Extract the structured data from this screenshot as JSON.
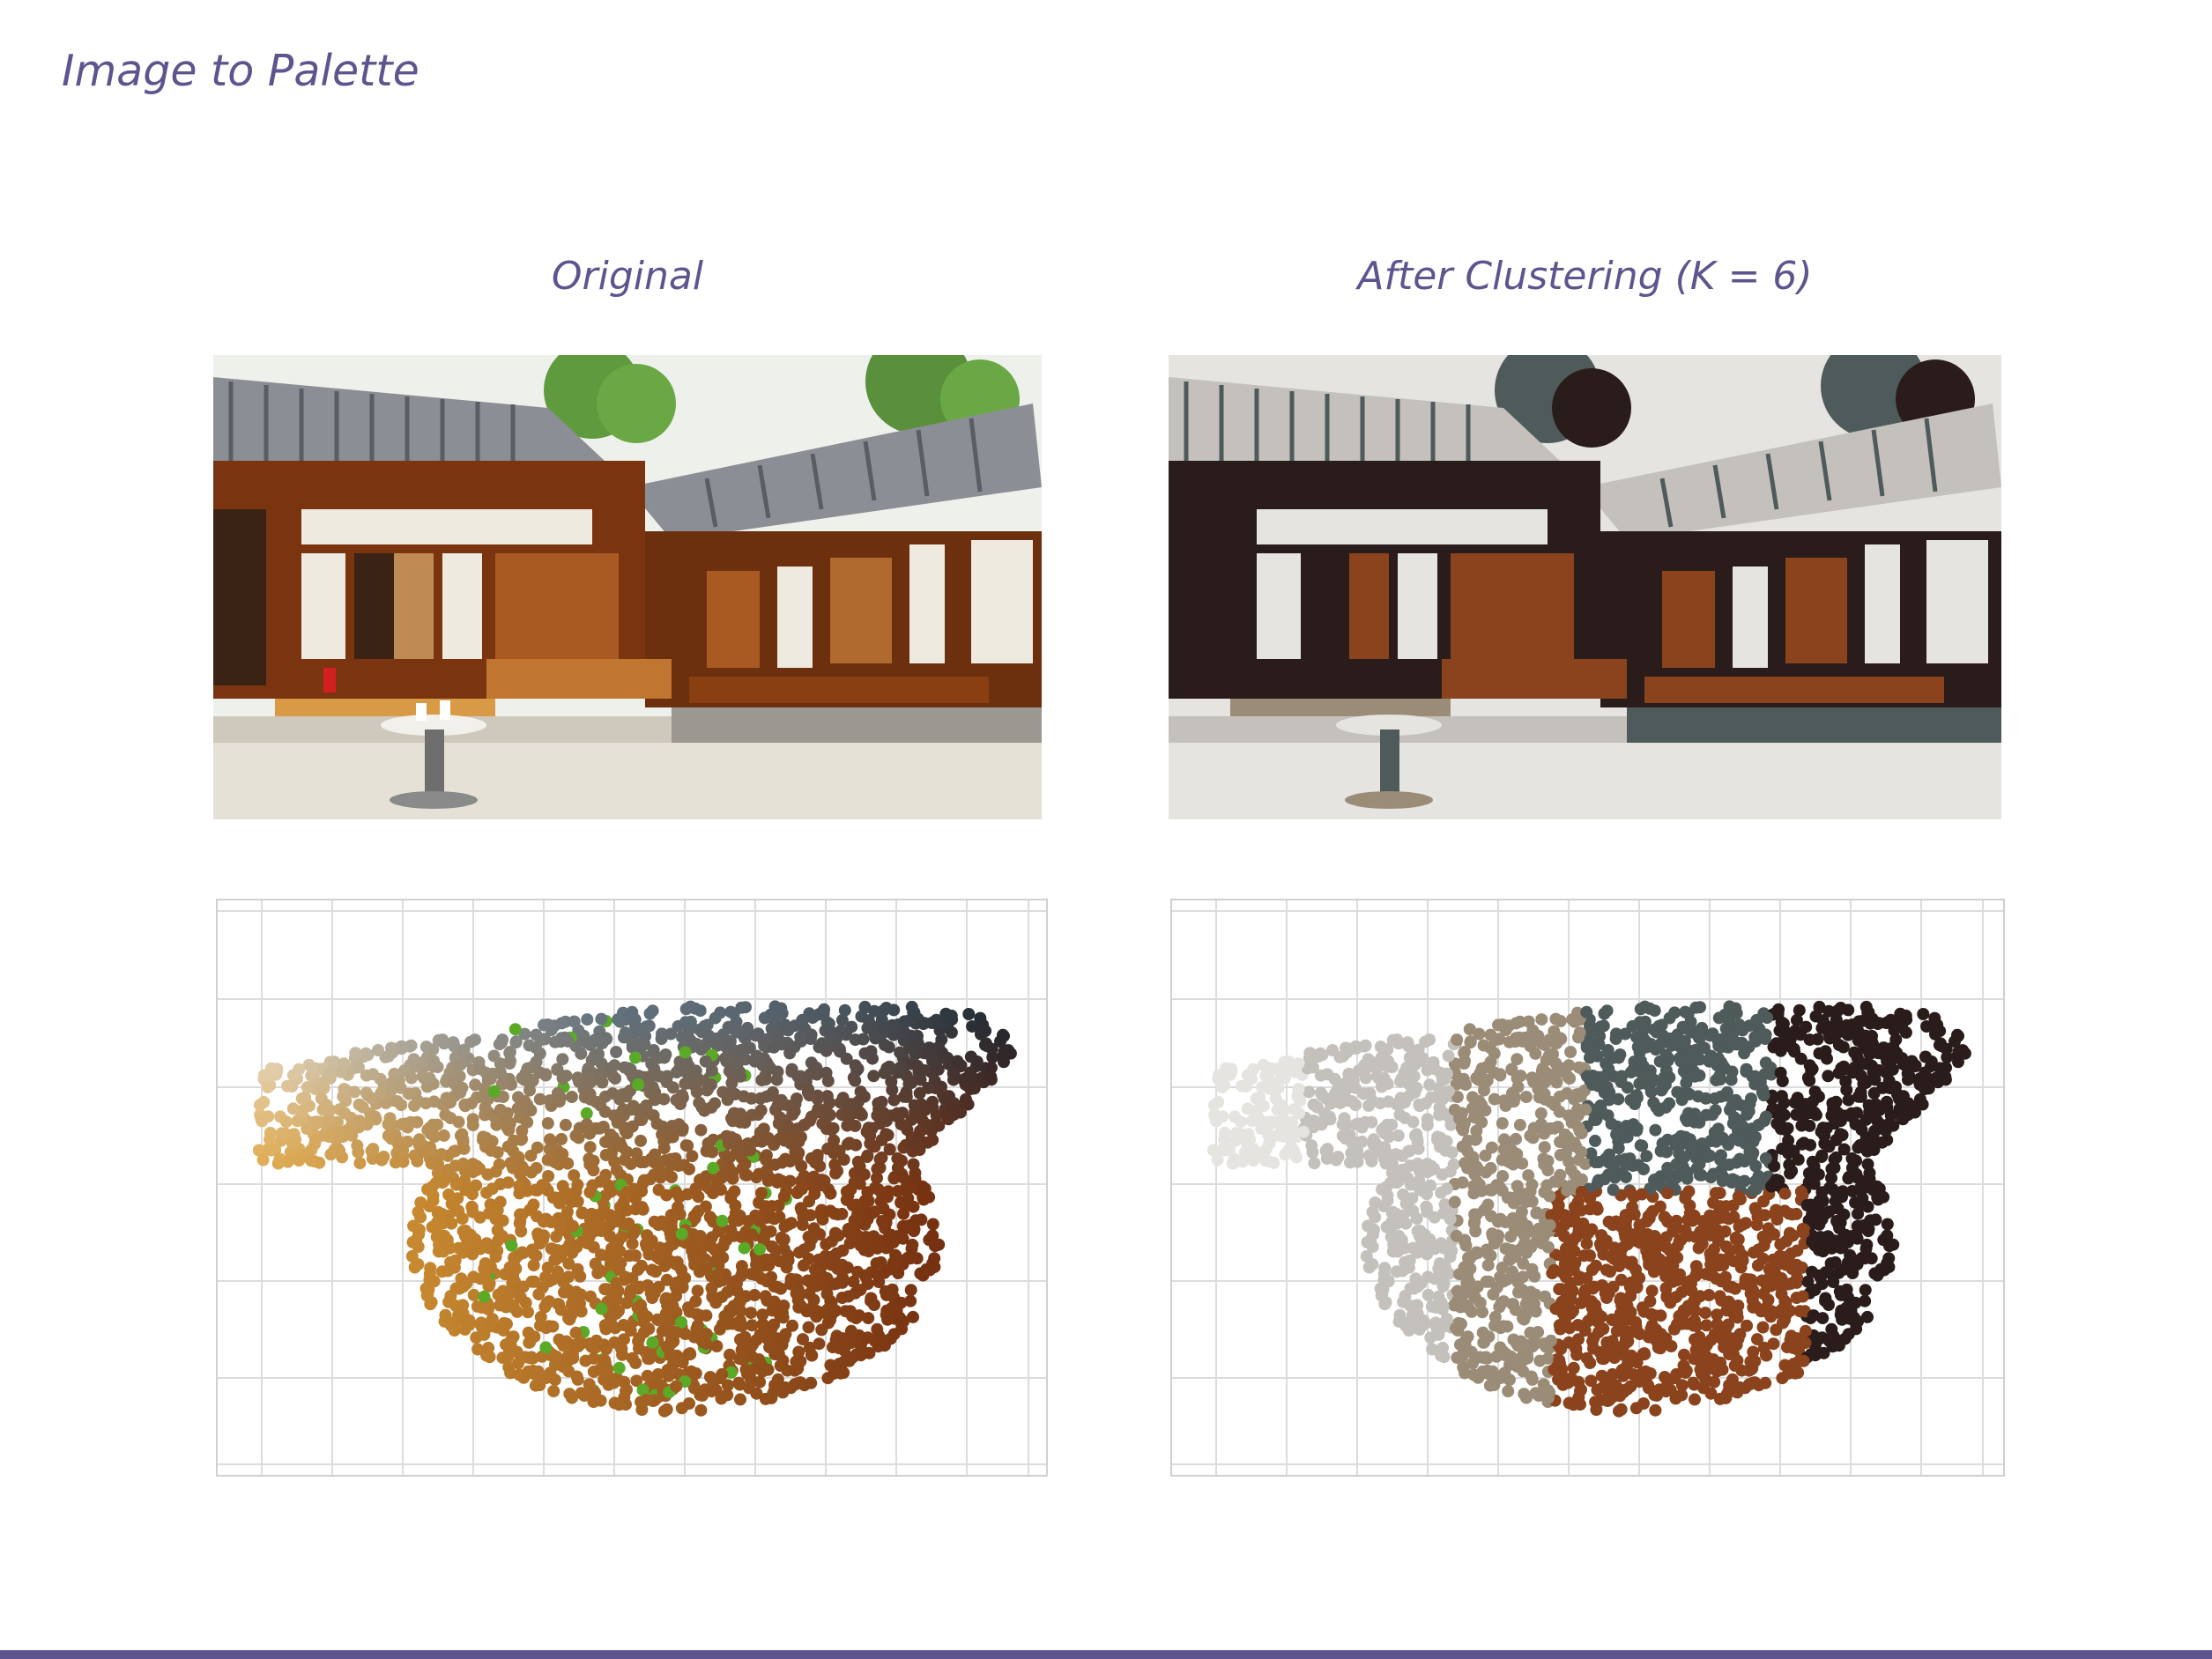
{
  "slide": {
    "title": "Image to Palette",
    "left_heading": "Original",
    "right_heading": "After Clustering (K = 6)"
  },
  "colors": {
    "accent": "#5e548e",
    "grid": "#dcdcdc",
    "wood": "#8a3f12",
    "roof": "#4d4d4d",
    "wall": "#ece9e2"
  },
  "palette": {
    "k": 6,
    "swatches": [
      "#e6e4e1",
      "#c4c1bc",
      "#9b8c77",
      "#4f5b5b",
      "#2a1c1a",
      "#8a431c"
    ]
  }
}
